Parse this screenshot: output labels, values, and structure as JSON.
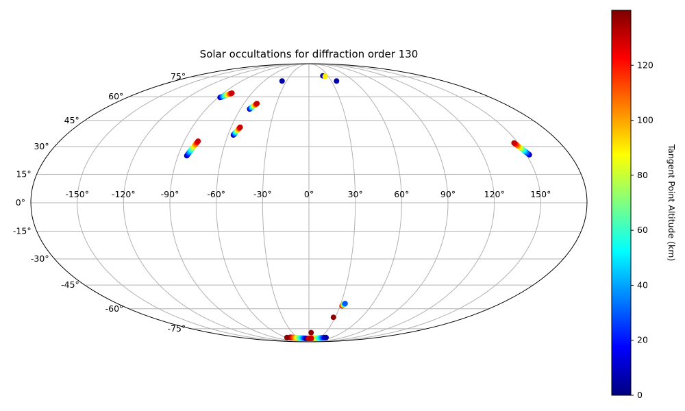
{
  "chart_data": {
    "type": "scatter",
    "projection": "mollweide",
    "title": "Solar occultations for diffraction order 130",
    "grid": true,
    "lon_ticks": [
      -150,
      -120,
      -90,
      -60,
      -30,
      0,
      30,
      60,
      90,
      120,
      150
    ],
    "lon_tick_labels": [
      "-150°",
      "-120°",
      "-90°",
      "-60°",
      "-30°",
      "0°",
      "30°",
      "60°",
      "90°",
      "120°",
      "150°"
    ],
    "lat_ticks": [
      75,
      60,
      45,
      30,
      15,
      0,
      -15,
      -30,
      -45,
      -60,
      -75
    ],
    "lat_tick_labels": [
      "75°",
      "60°",
      "45°",
      "30°",
      "15°",
      "0°",
      "-15°",
      "-30°",
      "-45°",
      "-60°",
      "-75°"
    ],
    "colorbar": {
      "label": "Tangent Point Altitude (km)",
      "colormap": "jet",
      "range": [
        0,
        140
      ],
      "ticks": [
        0,
        20,
        40,
        60,
        80,
        100,
        120
      ],
      "tick_labels": [
        "0",
        "20",
        "40",
        "60",
        "80",
        "100",
        "120"
      ]
    },
    "tracks": [
      {
        "lon_start": -88,
        "lat_start": 59.5,
        "lon_end": -81,
        "lat_end": 62.5,
        "alt_start": 5,
        "alt_end": 130
      },
      {
        "lon_start": -52,
        "lat_start": 52.0,
        "lon_end": -48,
        "lat_end": 55.5,
        "alt_start": 5,
        "alt_end": 130
      },
      {
        "lon_start": -56,
        "lat_start": 36.5,
        "lon_end": -53,
        "lat_end": 41.0,
        "alt_start": 5,
        "alt_end": 130
      },
      {
        "lon_start": -84,
        "lat_start": 25.0,
        "lon_end": -80,
        "lat_end": 33.0,
        "alt_start": 5,
        "alt_end": 130
      },
      {
        "lon_start": 152,
        "lat_start": 25.5,
        "lon_end": 147,
        "lat_end": 32.0,
        "alt_start": 5,
        "alt_end": 130
      },
      {
        "lon_start": 32,
        "lat_start": -58.0,
        "lon_end": 34,
        "lat_end": -56.5,
        "alt_start": 138,
        "alt_end": 30
      },
      {
        "lon_start": -48,
        "lat_start": -83.2,
        "lon_end": -6,
        "lat_end": -84.5,
        "alt_start": 138,
        "alt_end": 5
      },
      {
        "lon_start": 3,
        "lat_start": -84.5,
        "lon_end": 45,
        "lat_end": -83.5,
        "alt_start": 138,
        "alt_end": 5
      }
    ],
    "points": [
      {
        "lon": -36,
        "lat": 71.5,
        "alt": 5
      },
      {
        "lon": 22,
        "lat": 75.8,
        "alt": 5
      },
      {
        "lon": 25,
        "lat": 75.3,
        "alt": 90
      },
      {
        "lon": 37,
        "lat": 71.5,
        "alt": 5
      },
      {
        "lon": 28,
        "lat": -66.0,
        "alt": 138
      },
      {
        "lon": 4,
        "lat": -78.5,
        "alt": 138
      },
      {
        "lon": -58,
        "lat": -83.5,
        "alt": 138
      },
      {
        "lon": -2,
        "lat": -84.6,
        "alt": 130
      },
      {
        "lon": 7,
        "lat": -84.4,
        "alt": 130
      }
    ]
  }
}
